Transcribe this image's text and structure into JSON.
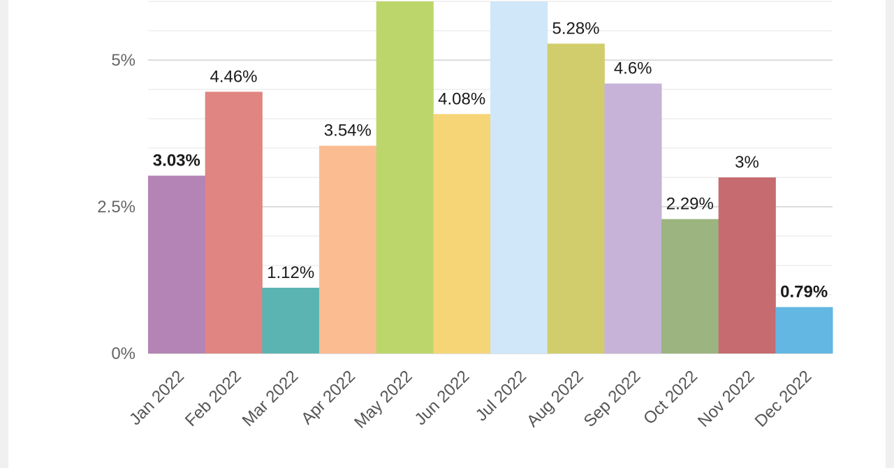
{
  "chart_data": {
    "type": "bar",
    "title": "",
    "xlabel": "",
    "ylabel": "",
    "ylim": [
      0,
      6
    ],
    "yticks": [
      {
        "value": 0,
        "label": "0%"
      },
      {
        "value": 2.5,
        "label": "2.5%"
      },
      {
        "value": 5,
        "label": "5%"
      }
    ],
    "grid": true,
    "categories": [
      "Jan 2022",
      "Feb 2022",
      "Mar 2022",
      "Apr 2022",
      "May 2022",
      "Jun 2022",
      "Jul 2022",
      "Aug 2022",
      "Sep 2022",
      "Oct 2022",
      "Nov 2022",
      "Dec 2022"
    ],
    "values": [
      3.03,
      4.46,
      1.12,
      3.54,
      6.0,
      4.08,
      6.0,
      5.28,
      4.6,
      2.29,
      3.0,
      0.79
    ],
    "data_labels": [
      "3.03%",
      "4.46%",
      "1.12%",
      "3.54%",
      "",
      "4.08%",
      "",
      "5.28%",
      "4.6%",
      "2.29%",
      "3%",
      "0.79%"
    ],
    "colors": [
      "#b384b5",
      "#e08581",
      "#5bb4b2",
      "#fbbc92",
      "#bdd66b",
      "#f6d577",
      "#d0e7fa",
      "#d2cd6c",
      "#c7b3d7",
      "#9cb47f",
      "#c66b6f",
      "#63b7e3"
    ]
  }
}
